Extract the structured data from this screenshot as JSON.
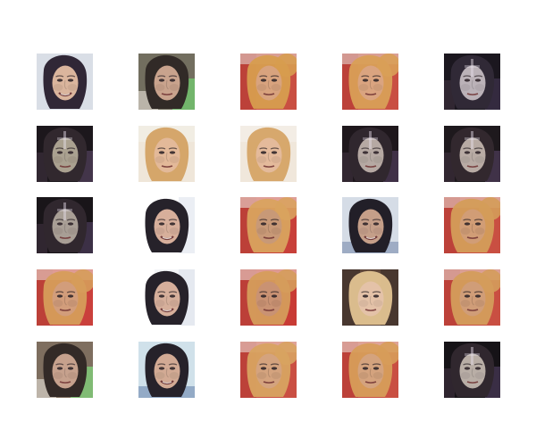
{
  "grid": {
    "rows": 5,
    "cols": 5,
    "cells": [
      {
        "variant": "darkhair-pale",
        "bg": "#d8dde6",
        "hair": "#2a2030",
        "skin": "#d9b39a",
        "accent": "#9aa7c0"
      },
      {
        "variant": "shorthair-green",
        "bg": "#6e6a5a",
        "hair": "#2b2420",
        "skin": "#c8a08a",
        "accent": "#6fbf6a"
      },
      {
        "variant": "blond-red",
        "bg": "#c84a3c",
        "hair": "#d69a4a",
        "skin": "#d7a07a",
        "accent": "#e6e0d8"
      },
      {
        "variant": "blond-red",
        "bg": "#c84a3c",
        "hair": "#d89c52",
        "skin": "#d9a27c",
        "accent": "#e6e0d8"
      },
      {
        "variant": "dark-ghost",
        "bg": "#141018",
        "hair": "#2a2330",
        "skin": "#b9b0b6",
        "accent": "#5f4a78"
      },
      {
        "variant": "dark-ghost",
        "bg": "#151015",
        "hair": "#2b2228",
        "skin": "#a89e8d",
        "accent": "#8a6aa0"
      },
      {
        "variant": "blonde-light",
        "bg": "#efe6d8",
        "hair": "#d2a060",
        "skin": "#e3b796",
        "accent": "#f2efe8"
      },
      {
        "variant": "blonde-light",
        "bg": "#f0e7da",
        "hair": "#d4a262",
        "skin": "#e4b898",
        "accent": "#f3f0ea"
      },
      {
        "variant": "dark-ghost",
        "bg": "#171015",
        "hair": "#2a2028",
        "skin": "#b4a7a0",
        "accent": "#7a5f98"
      },
      {
        "variant": "dark-ghost",
        "bg": "#171216",
        "hair": "#2c2228",
        "skin": "#b6a9a2",
        "accent": "#7a5f98"
      },
      {
        "variant": "dark-ghost",
        "bg": "#120e12",
        "hair": "#2a2028",
        "skin": "#a69b92",
        "accent": "#7a5f98"
      },
      {
        "variant": "darkhair-white",
        "bg": "#ffffff",
        "hair": "#1f1b24",
        "skin": "#d6ad98",
        "accent": "#c7cfe0"
      },
      {
        "variant": "blond-red",
        "bg": "#c73a34",
        "hair": "#d8a05a",
        "skin": "#c79673",
        "accent": "#f0ece6"
      },
      {
        "variant": "darkhair-blue",
        "bg": "#d4dbe6",
        "hair": "#1b1822",
        "skin": "#c49c86",
        "accent": "#7d90b0"
      },
      {
        "variant": "blond-red",
        "bg": "#c84a3c",
        "hair": "#d39a54",
        "skin": "#d09a72",
        "accent": "#e9e1d8"
      },
      {
        "variant": "blond-red",
        "bg": "#c93a36",
        "hair": "#d59a55",
        "skin": "#d19a77",
        "accent": "#efe7df"
      },
      {
        "variant": "darkhair-white",
        "bg": "#f4f6f8",
        "hair": "#1f1b24",
        "skin": "#d5ad98",
        "accent": "#c9d2e2"
      },
      {
        "variant": "blond-red",
        "bg": "#c7352f",
        "hair": "#d49a56",
        "skin": "#c88f6f",
        "accent": "#efe8e0"
      },
      {
        "variant": "blonde-dark",
        "bg": "#5a4234",
        "hair": "#e1c28f",
        "skin": "#e4c1a6",
        "accent": "#f0e6d8"
      },
      {
        "variant": "blond-red",
        "bg": "#c84a3c",
        "hair": "#d39a56",
        "skin": "#cf9a74",
        "accent": "#eae2d8"
      },
      {
        "variant": "shorthair-green",
        "bg": "#7a6a5a",
        "hair": "#2d2420",
        "skin": "#c59e8a",
        "accent": "#7cc774"
      },
      {
        "variant": "darkhair-blue",
        "bg": "#cfe1ea",
        "hair": "#1f1b24",
        "skin": "#d1a891",
        "accent": "#6f88b0"
      },
      {
        "variant": "blond-red",
        "bg": "#c94a3d",
        "hair": "#d7a05c",
        "skin": "#d3a07a",
        "accent": "#efe8df"
      },
      {
        "variant": "blond-red",
        "bg": "#c84a3c",
        "hair": "#d69a54",
        "skin": "#d3a07a",
        "accent": "#efe8df"
      },
      {
        "variant": "dark-ghost",
        "bg": "#0f0c10",
        "hair": "#2a2028",
        "skin": "#b7aca4",
        "accent": "#7a5f98"
      }
    ]
  }
}
